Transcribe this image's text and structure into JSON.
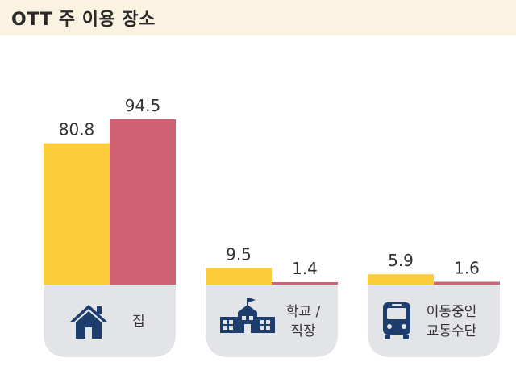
{
  "title": "OTT 주 이용 장소",
  "colors": {
    "series1": "#fccd3a",
    "series2": "#cf6172",
    "card": "#e3e4e7",
    "icon": "#1d3e6c",
    "title_band": "#fbf3e1"
  },
  "chart_data": {
    "type": "bar",
    "categories": [
      {
        "lines": [
          "집"
        ],
        "icon": "house-icon"
      },
      {
        "lines": [
          "학교 /",
          "직장"
        ],
        "icon": "school-icon"
      },
      {
        "lines": [
          "이동중인",
          "교통수단"
        ],
        "icon": "bus-icon"
      }
    ],
    "series": [
      {
        "values": [
          80.8,
          9.5,
          5.9
        ]
      },
      {
        "values": [
          94.5,
          1.4,
          1.6
        ]
      }
    ],
    "value_labels": [
      [
        "80.8",
        "9.5",
        "5.9"
      ],
      [
        "94.5",
        "1.4",
        "1.6"
      ]
    ],
    "ylim": [
      0,
      100
    ],
    "grid": false,
    "legend": "none"
  }
}
